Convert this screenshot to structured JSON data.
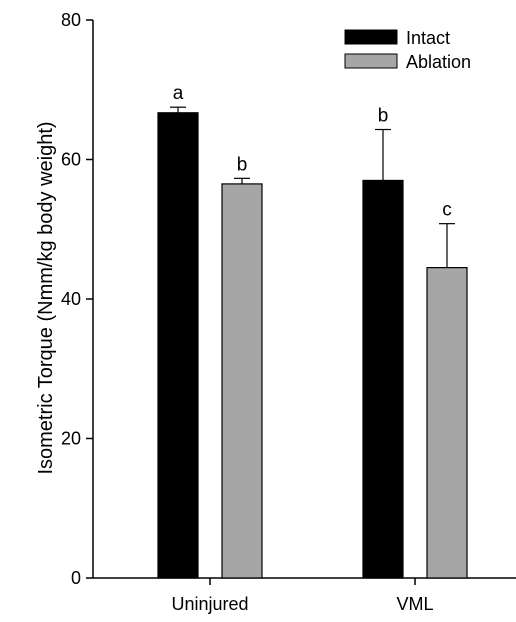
{
  "chart_data": {
    "type": "bar",
    "title": "",
    "xlabel": "",
    "ylabel": "Isometric Torque (Nmm/kg body weight)",
    "ylim": [
      0,
      80
    ],
    "yticks": [
      "0",
      "20",
      "40",
      "60",
      "80"
    ],
    "categories": [
      "Uninjured",
      "VML"
    ],
    "series": [
      {
        "name": "Intact",
        "color": "#000000",
        "values": [
          66.7,
          57.0
        ],
        "errors": [
          0.8,
          7.3
        ],
        "sig_labels": [
          "a",
          "b"
        ]
      },
      {
        "name": "Ablation",
        "color": "#a6a6a6",
        "values": [
          56.5,
          44.5
        ],
        "errors": [
          0.8,
          6.3
        ],
        "sig_labels": [
          "b",
          "c"
        ]
      }
    ],
    "legend_position": "top-right",
    "grid": false
  }
}
